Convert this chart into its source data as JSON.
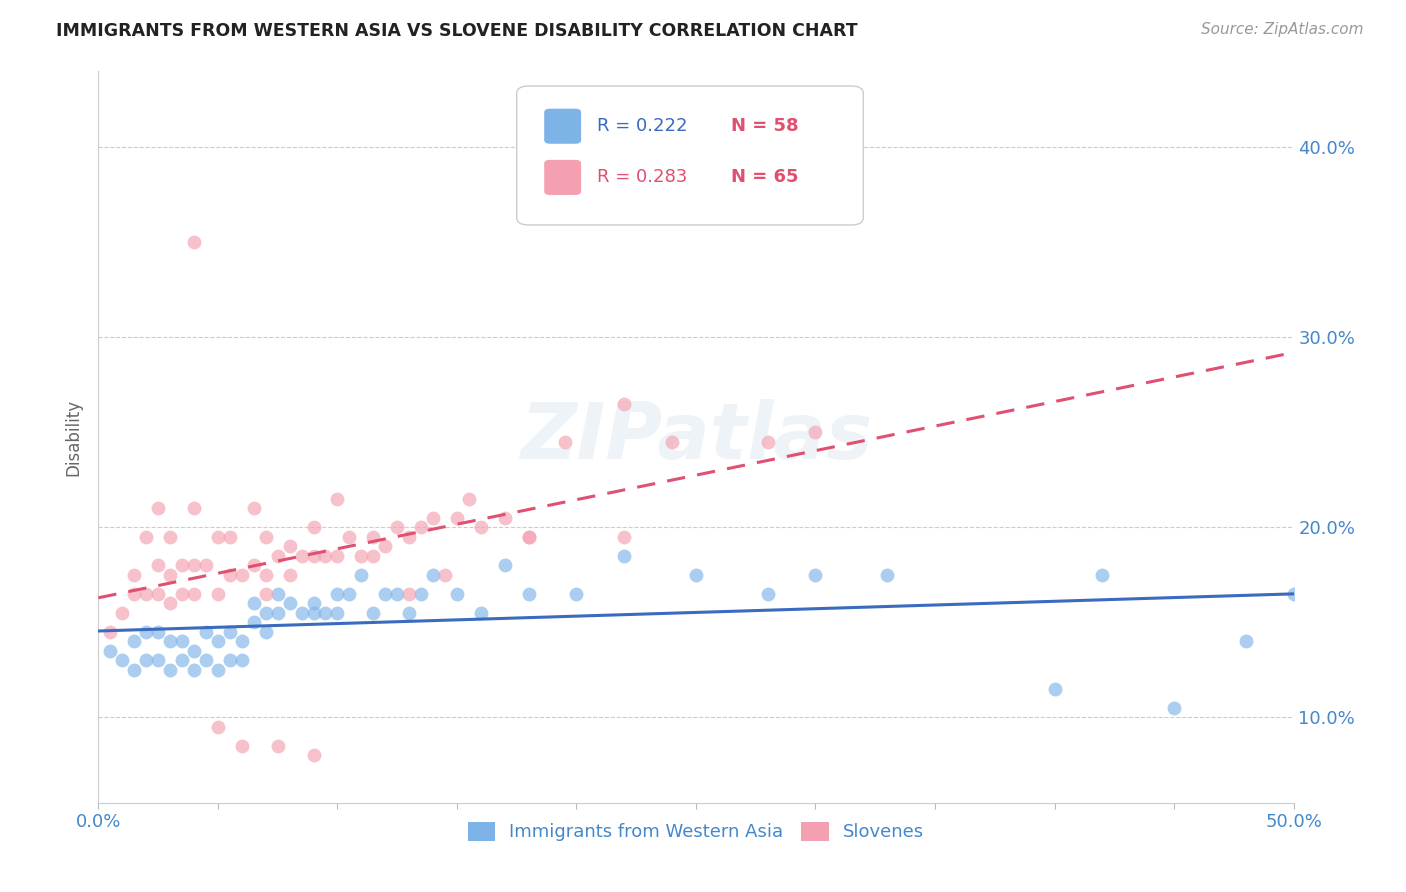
{
  "title": "IMMIGRANTS FROM WESTERN ASIA VS SLOVENE DISABILITY CORRELATION CHART",
  "source": "Source: ZipAtlas.com",
  "ylabel": "Disability",
  "yticks": [
    0.1,
    0.2,
    0.3,
    0.4
  ],
  "ytick_labels": [
    "10.0%",
    "20.0%",
    "30.0%",
    "40.0%"
  ],
  "xticks": [
    0.0,
    0.05,
    0.1,
    0.15,
    0.2,
    0.25,
    0.3,
    0.35,
    0.4,
    0.45,
    0.5
  ],
  "xlim": [
    0.0,
    0.5
  ],
  "ylim": [
    0.055,
    0.44
  ],
  "blue_color": "#7eb3e8",
  "pink_color": "#f4a0b0",
  "blue_line_color": "#3a6bbf",
  "pink_line_color": "#e05070",
  "title_color": "#222222",
  "tick_color": "#4488cc",
  "background_color": "#ffffff",
  "grid_color": "#cccccc",
  "watermark": "ZIPatlas",
  "blue_scatter_x": [
    0.005,
    0.01,
    0.015,
    0.015,
    0.02,
    0.02,
    0.025,
    0.025,
    0.03,
    0.03,
    0.035,
    0.035,
    0.04,
    0.04,
    0.045,
    0.045,
    0.05,
    0.05,
    0.055,
    0.055,
    0.06,
    0.06,
    0.065,
    0.065,
    0.07,
    0.07,
    0.075,
    0.075,
    0.08,
    0.085,
    0.09,
    0.09,
    0.095,
    0.1,
    0.1,
    0.105,
    0.11,
    0.115,
    0.12,
    0.125,
    0.13,
    0.135,
    0.14,
    0.15,
    0.16,
    0.17,
    0.18,
    0.2,
    0.22,
    0.25,
    0.28,
    0.3,
    0.33,
    0.4,
    0.42,
    0.45,
    0.48,
    0.5
  ],
  "blue_scatter_y": [
    0.135,
    0.13,
    0.14,
    0.125,
    0.13,
    0.145,
    0.13,
    0.145,
    0.125,
    0.14,
    0.13,
    0.14,
    0.125,
    0.135,
    0.13,
    0.145,
    0.125,
    0.14,
    0.13,
    0.145,
    0.13,
    0.14,
    0.15,
    0.16,
    0.145,
    0.155,
    0.155,
    0.165,
    0.16,
    0.155,
    0.155,
    0.16,
    0.155,
    0.155,
    0.165,
    0.165,
    0.175,
    0.155,
    0.165,
    0.165,
    0.155,
    0.165,
    0.175,
    0.165,
    0.155,
    0.18,
    0.165,
    0.165,
    0.185,
    0.175,
    0.165,
    0.175,
    0.175,
    0.115,
    0.175,
    0.105,
    0.14,
    0.165
  ],
  "pink_scatter_x": [
    0.005,
    0.01,
    0.015,
    0.015,
    0.02,
    0.02,
    0.025,
    0.025,
    0.025,
    0.03,
    0.03,
    0.03,
    0.035,
    0.035,
    0.04,
    0.04,
    0.04,
    0.045,
    0.05,
    0.05,
    0.055,
    0.055,
    0.06,
    0.065,
    0.065,
    0.07,
    0.07,
    0.075,
    0.08,
    0.085,
    0.09,
    0.09,
    0.095,
    0.1,
    0.105,
    0.11,
    0.115,
    0.12,
    0.125,
    0.13,
    0.135,
    0.14,
    0.15,
    0.16,
    0.17,
    0.18,
    0.195,
    0.22,
    0.24,
    0.28,
    0.04,
    0.05,
    0.06,
    0.07,
    0.075,
    0.08,
    0.09,
    0.1,
    0.115,
    0.13,
    0.145,
    0.155,
    0.18,
    0.22,
    0.3
  ],
  "pink_scatter_y": [
    0.145,
    0.155,
    0.165,
    0.175,
    0.165,
    0.195,
    0.165,
    0.18,
    0.21,
    0.16,
    0.175,
    0.195,
    0.165,
    0.18,
    0.165,
    0.18,
    0.21,
    0.18,
    0.165,
    0.195,
    0.175,
    0.195,
    0.175,
    0.18,
    0.21,
    0.175,
    0.195,
    0.185,
    0.19,
    0.185,
    0.185,
    0.2,
    0.185,
    0.185,
    0.195,
    0.185,
    0.195,
    0.19,
    0.2,
    0.195,
    0.2,
    0.205,
    0.205,
    0.2,
    0.205,
    0.195,
    0.245,
    0.195,
    0.245,
    0.245,
    0.35,
    0.095,
    0.085,
    0.165,
    0.085,
    0.175,
    0.08,
    0.215,
    0.185,
    0.165,
    0.175,
    0.215,
    0.195,
    0.265,
    0.25
  ]
}
